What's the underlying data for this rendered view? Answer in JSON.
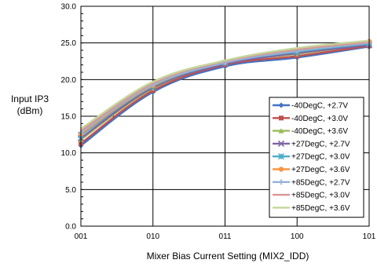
{
  "chart_data": {
    "type": "line",
    "title": "",
    "xlabel": "Mixer Bias Current Setting (MIX2_IDD)",
    "ylabel_line1": "Input IP3",
    "ylabel_line2": "(dBm)",
    "categories": [
      "001",
      "010",
      "011",
      "100",
      "101"
    ],
    "ylim": [
      0,
      30
    ],
    "yticks": [
      "0.0",
      "5.0",
      "10.0",
      "15.0",
      "20.0",
      "25.0",
      "30.0"
    ],
    "grid": true,
    "legend_position": "right",
    "series": [
      {
        "name": "-40DegC, +2.7V",
        "color": "#4472c4",
        "marker": "diamond",
        "values": [
          11.0,
          18.3,
          21.8,
          23.0,
          24.5
        ]
      },
      {
        "name": "-40DegC, +3.0V",
        "color": "#c0504d",
        "marker": "square",
        "values": [
          11.3,
          18.5,
          22.0,
          23.2,
          24.6
        ]
      },
      {
        "name": "-40DegC, +3.6V",
        "color": "#9bbb59",
        "marker": "triangle",
        "values": [
          11.8,
          18.8,
          22.2,
          23.5,
          24.8
        ]
      },
      {
        "name": "+27DegC, +2.7V",
        "color": "#8064a2",
        "marker": "x",
        "values": [
          12.0,
          18.9,
          22.1,
          23.6,
          24.7
        ]
      },
      {
        "name": "+27DegC, +3.0V",
        "color": "#4bacc6",
        "marker": "star",
        "values": [
          12.4,
          19.1,
          22.3,
          23.8,
          24.9
        ]
      },
      {
        "name": "+27DegC, +3.6V",
        "color": "#f79646",
        "marker": "circle",
        "values": [
          12.6,
          19.2,
          22.4,
          24.0,
          25.2
        ]
      },
      {
        "name": "+85DegC, +2.7V",
        "color": "#95b3d7",
        "marker": "plus",
        "values": [
          12.8,
          19.3,
          22.3,
          23.9,
          25.0
        ]
      },
      {
        "name": "+85DegC, +3.0V",
        "color": "#d99694",
        "marker": "none",
        "values": [
          13.0,
          19.5,
          22.5,
          24.1,
          25.1
        ]
      },
      {
        "name": "+85DegC, +3.6V",
        "color": "#c3d69b",
        "marker": "none",
        "values": [
          13.3,
          19.7,
          22.6,
          24.3,
          25.3
        ]
      }
    ]
  }
}
